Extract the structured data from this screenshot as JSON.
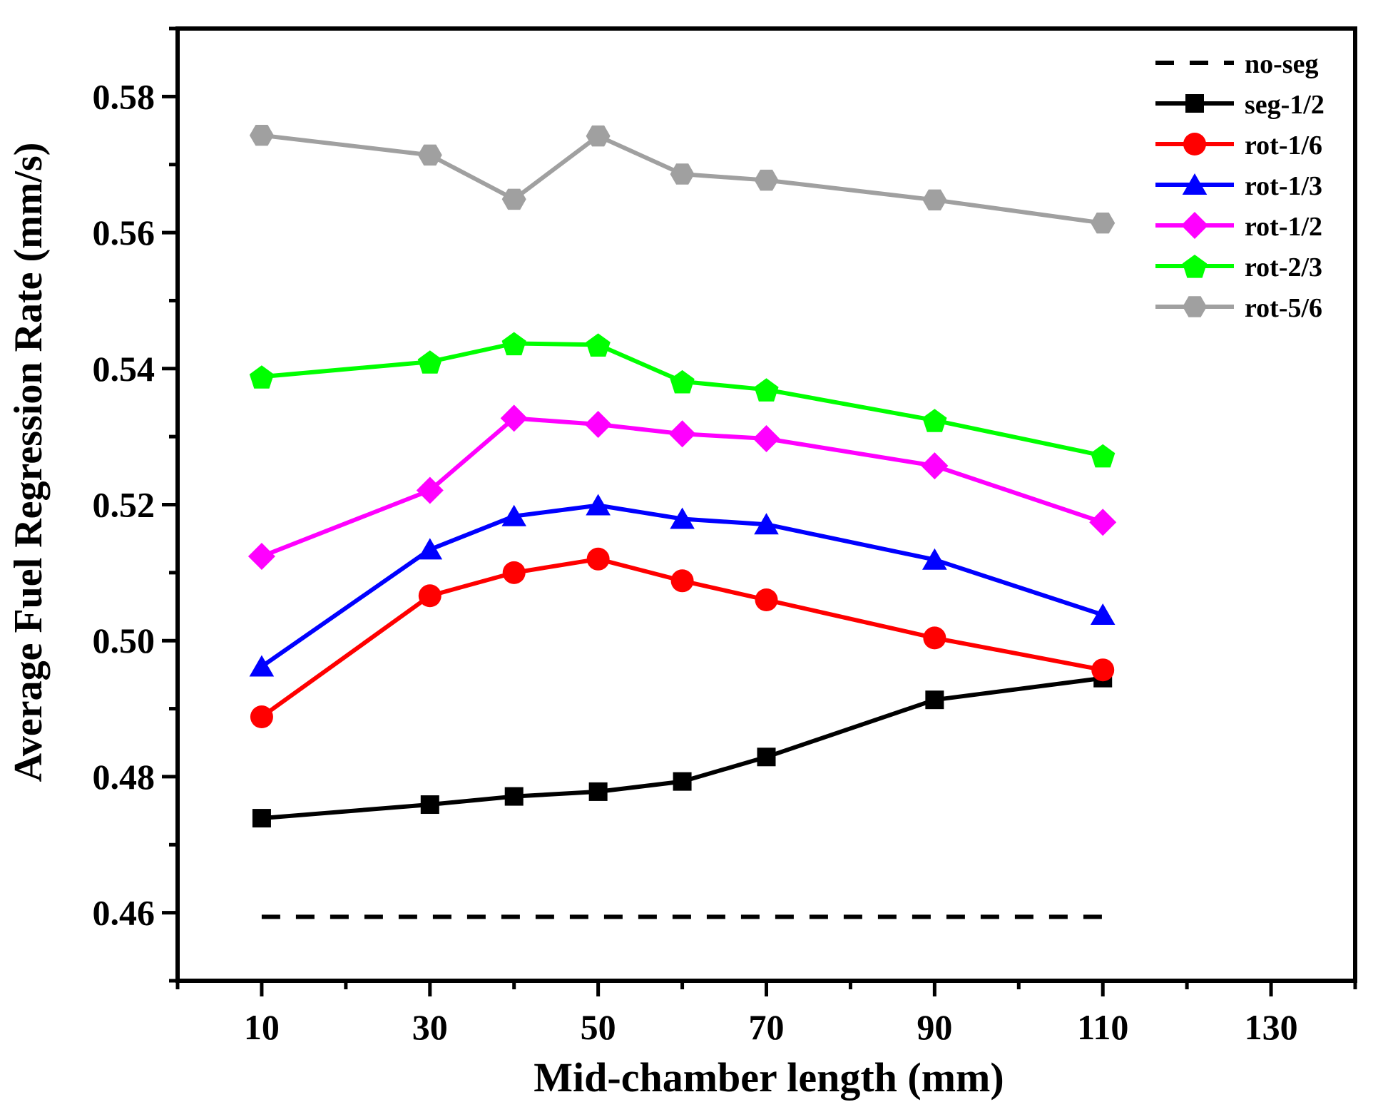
{
  "chart_data": {
    "type": "line",
    "title": "",
    "xlabel": "Mid-chamber length (mm)",
    "ylabel": "Average Fuel Regression Rate (mm/s)",
    "xlim": [
      0,
      140
    ],
    "ylim": [
      0.45,
      0.59
    ],
    "x_ticks": [
      10,
      30,
      50,
      70,
      90,
      110,
      130
    ],
    "y_ticks": [
      0.46,
      0.48,
      0.5,
      0.52,
      0.54,
      0.56,
      0.58
    ],
    "y_tick_labels": [
      "0.46",
      "0.48",
      "0.50",
      "0.52",
      "0.54",
      "0.56",
      "0.58"
    ],
    "legend_position": "top-right",
    "x": [
      10,
      30,
      40,
      50,
      60,
      70,
      90,
      110
    ],
    "series": [
      {
        "name": "no-seg",
        "color": "#000000",
        "marker": "none",
        "dash": true,
        "values": [
          0.4594,
          0.4594,
          0.4594,
          0.4594,
          0.4594,
          0.4594,
          0.4594,
          0.4594
        ]
      },
      {
        "name": "seg-1/2",
        "color": "#000000",
        "marker": "square",
        "values": [
          0.4739,
          0.4759,
          0.4771,
          0.4778,
          0.4793,
          0.4829,
          0.4913,
          0.4945
        ]
      },
      {
        "name": "rot-1/6",
        "color": "#ff0000",
        "marker": "circle",
        "values": [
          0.4888,
          0.5066,
          0.51,
          0.512,
          0.5088,
          0.506,
          0.5004,
          0.4957
        ]
      },
      {
        "name": "rot-1/3",
        "color": "#0000ff",
        "marker": "triangle",
        "values": [
          0.4962,
          0.5134,
          0.5183,
          0.5199,
          0.5179,
          0.5171,
          0.5119,
          0.5038
        ]
      },
      {
        "name": "rot-1/2",
        "color": "#ff00ff",
        "marker": "diamond",
        "values": [
          0.5124,
          0.5221,
          0.5327,
          0.5318,
          0.5304,
          0.5297,
          0.5257,
          0.5174
        ]
      },
      {
        "name": "rot-2/3",
        "color": "#00ff00",
        "marker": "pentagon",
        "values": [
          0.5388,
          0.541,
          0.5437,
          0.5435,
          0.5381,
          0.5369,
          0.5324,
          0.5272
        ]
      },
      {
        "name": "rot-5/6",
        "color": "#a0a0a0",
        "marker": "hexagon",
        "values": [
          0.5743,
          0.5714,
          0.5649,
          0.5742,
          0.5686,
          0.5677,
          0.5648,
          0.5614
        ]
      }
    ]
  }
}
